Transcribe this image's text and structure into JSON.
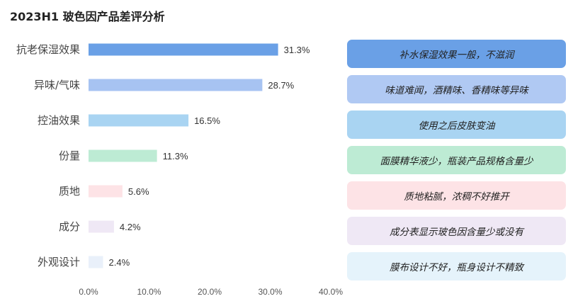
{
  "chart_data": {
    "type": "bar",
    "orientation": "horizontal",
    "title": "2023H1 玻色因产品差评分析",
    "categories": [
      "抗老保湿效果",
      "异味/气味",
      "控油效果",
      "份量",
      "质地",
      "成分",
      "外观设计"
    ],
    "values": [
      31.3,
      28.7,
      16.5,
      11.3,
      5.6,
      4.2,
      2.4
    ],
    "value_labels": [
      "31.3%",
      "28.7%",
      "16.5%",
      "11.3%",
      "5.6%",
      "4.2%",
      "2.4%"
    ],
    "xlim": [
      0,
      40
    ],
    "xticks": [
      "0.0%",
      "10.0%",
      "20.0%",
      "30.0%",
      "40.0%"
    ],
    "grid": false,
    "colors": [
      "#6aa0e6",
      "#a7c3f2",
      "#a9d4f2",
      "#bdebd4",
      "#fde3e6",
      "#efe8f5",
      "#e9f0fa"
    ],
    "annotations": [
      "补水保湿效果一般，不滋润",
      "味道难闻，酒精味、香精味等异味",
      "使用之后皮肤变油",
      "面膜精华液少，瓶装产品规格含量少",
      "质地粘腻，浓稠不好推开",
      "成分表显示玻色因含量少或没有",
      "膜布设计不好，瓶身设计不精致"
    ],
    "annotation_colors": [
      "#6aa0e6",
      "#b0c9f3",
      "#a9d4f2",
      "#bdebd4",
      "#fde3e6",
      "#efe8f5",
      "#e5f3fb"
    ]
  }
}
